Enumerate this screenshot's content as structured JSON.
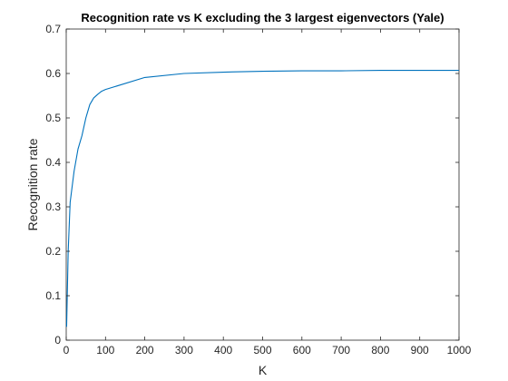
{
  "chart_data": {
    "type": "line",
    "title": "Recognition rate vs K excluding the 3 largest eigenvectors (Yale)",
    "xlabel": "K",
    "ylabel": "Recognition rate",
    "xlim": [
      0,
      1000
    ],
    "ylim": [
      0,
      0.7
    ],
    "xticks": [
      "0",
      "100",
      "200",
      "300",
      "400",
      "500",
      "600",
      "700",
      "800",
      "900",
      "1000"
    ],
    "yticks": [
      "0",
      "0.1",
      "0.2",
      "0.3",
      "0.4",
      "0.5",
      "0.6",
      "0.7"
    ],
    "grid": false,
    "series": [
      {
        "color": "#0072BD",
        "x": [
          1,
          5,
          10,
          20,
          30,
          40,
          50,
          60,
          70,
          80,
          90,
          100,
          200,
          300,
          400,
          500,
          600,
          700,
          800,
          900,
          1000
        ],
        "y": [
          0.03,
          0.2,
          0.31,
          0.38,
          0.43,
          0.46,
          0.5,
          0.53,
          0.545,
          0.553,
          0.56,
          0.564,
          0.591,
          0.6,
          0.603,
          0.605,
          0.606,
          0.606,
          0.607,
          0.607,
          0.607
        ]
      }
    ]
  }
}
